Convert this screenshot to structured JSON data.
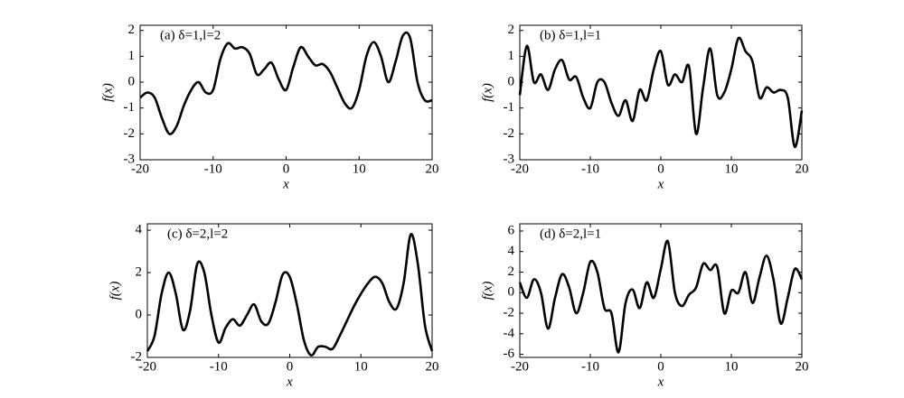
{
  "chart_data": [
    {
      "type": "line",
      "annotation": "(a) δ=1,l=2",
      "xlabel": "x",
      "ylabel": "f(x)",
      "color": "#000000",
      "x": [
        -20,
        -19,
        -18,
        -17,
        -16,
        -15,
        -14,
        -13,
        -12,
        -11,
        -10,
        -9,
        -8,
        -7,
        -6,
        -5,
        -4,
        -3,
        -2,
        -1,
        0,
        1,
        2,
        3,
        4,
        5,
        6,
        7,
        8,
        9,
        10,
        11,
        12,
        13,
        14,
        15,
        16,
        17,
        18,
        19,
        20
      ],
      "values": [
        -0.6,
        -0.4,
        -0.6,
        -1.4,
        -2.0,
        -1.7,
        -0.9,
        -0.3,
        0.0,
        -0.4,
        -0.3,
        0.9,
        1.5,
        1.3,
        1.35,
        1.1,
        0.3,
        0.5,
        0.75,
        0.1,
        -0.3,
        0.6,
        1.35,
        1.0,
        0.65,
        0.7,
        0.4,
        -0.2,
        -0.8,
        -1.0,
        -0.3,
        1.0,
        1.55,
        1.0,
        0.0,
        0.8,
        1.8,
        1.7,
        0.0,
        -0.7,
        -0.7
      ],
      "xlim": [
        -20,
        20
      ],
      "xticks": [
        -20,
        -10,
        0,
        10,
        20
      ],
      "ylim": [
        -3,
        2.2
      ],
      "yticks": [
        -3,
        -2,
        -1,
        0,
        1,
        2
      ]
    },
    {
      "type": "line",
      "annotation": "(b) δ=1,l=1",
      "xlabel": "x",
      "ylabel": "f(x)",
      "color": "#000000",
      "x": [
        -20,
        -19,
        -18,
        -17,
        -16,
        -15,
        -14,
        -13,
        -12,
        -11,
        -10,
        -9,
        -8,
        -7,
        -6,
        -5,
        -4,
        -3,
        -2,
        -1,
        0,
        1,
        2,
        3,
        4,
        5,
        6,
        7,
        8,
        9,
        10,
        11,
        12,
        13,
        14,
        15,
        16,
        17,
        18,
        19,
        20
      ],
      "values": [
        -0.5,
        1.4,
        0.0,
        0.3,
        -0.3,
        0.5,
        0.85,
        0.1,
        0.2,
        -0.6,
        -1.0,
        0.0,
        0.0,
        -0.8,
        -1.3,
        -0.7,
        -1.5,
        -0.3,
        -0.7,
        0.5,
        1.2,
        -0.1,
        0.3,
        0.0,
        0.6,
        -2.0,
        -0.2,
        1.3,
        -0.5,
        -0.4,
        0.5,
        1.7,
        1.2,
        0.8,
        -0.6,
        -0.2,
        -0.4,
        -0.3,
        -0.6,
        -2.5,
        -1.1
      ],
      "xlim": [
        -20,
        20
      ],
      "xticks": [
        -20,
        -10,
        0,
        10,
        20
      ],
      "ylim": [
        -3,
        2.2
      ],
      "yticks": [
        -3,
        -2,
        -1,
        0,
        1,
        2
      ]
    },
    {
      "type": "line",
      "annotation": "(c) δ=2,l=2",
      "xlabel": "x",
      "ylabel": "f(x)",
      "color": "#000000",
      "x": [
        -20,
        -19,
        -18,
        -17,
        -16,
        -15,
        -14,
        -13,
        -12,
        -11,
        -10,
        -9,
        -8,
        -7,
        -6,
        -5,
        -4,
        -3,
        -2,
        -1,
        0,
        1,
        2,
        3,
        4,
        5,
        6,
        7,
        8,
        9,
        10,
        11,
        12,
        13,
        14,
        15,
        16,
        17,
        18,
        19,
        20
      ],
      "values": [
        -1.7,
        -1.0,
        1.0,
        2.0,
        1.0,
        -0.7,
        0.2,
        2.4,
        2.0,
        0.0,
        -1.3,
        -0.6,
        -0.2,
        -0.5,
        0.0,
        0.5,
        -0.3,
        -0.4,
        0.6,
        1.9,
        1.8,
        0.5,
        -1.2,
        -1.9,
        -1.5,
        -1.5,
        -1.6,
        -1.0,
        -0.3,
        0.4,
        1.0,
        1.5,
        1.8,
        1.5,
        0.6,
        0.3,
        1.5,
        3.8,
        2.4,
        -0.5,
        -1.7
      ],
      "xlim": [
        -20,
        20
      ],
      "xticks": [
        -20,
        -10,
        0,
        10,
        20
      ],
      "ylim": [
        -2,
        4.3
      ],
      "yticks": [
        -2,
        0,
        2,
        4
      ]
    },
    {
      "type": "line",
      "annotation": "(d) δ=2,l=1",
      "xlabel": "x",
      "ylabel": "f(x)",
      "color": "#000000",
      "x": [
        -20,
        -19,
        -18,
        -17,
        -16,
        -15,
        -14,
        -13,
        -12,
        -11,
        -10,
        -9,
        -8,
        -7,
        -6,
        -5,
        -4,
        -3,
        -2,
        -1,
        0,
        1,
        2,
        3,
        4,
        5,
        6,
        7,
        8,
        9,
        10,
        11,
        12,
        13,
        14,
        15,
        16,
        17,
        18,
        19,
        20
      ],
      "values": [
        1.0,
        -0.5,
        1.3,
        0.0,
        -3.5,
        -0.5,
        1.8,
        0.5,
        -2.0,
        0.0,
        3.0,
        2.0,
        -1.5,
        -2.0,
        -5.8,
        -1.0,
        0.3,
        -1.5,
        1.0,
        -0.5,
        2.3,
        5.0,
        0.0,
        -1.3,
        -0.2,
        0.5,
        2.8,
        2.2,
        2.5,
        -2.0,
        0.2,
        0.0,
        2.0,
        -1.0,
        1.5,
        3.6,
        1.2,
        -3.0,
        -0.5,
        2.3,
        1.3
      ],
      "xlim": [
        -20,
        20
      ],
      "xticks": [
        -20,
        -10,
        0,
        10,
        20
      ],
      "ylim": [
        -6.3,
        6.7
      ],
      "yticks": [
        -6,
        -4,
        -2,
        0,
        2,
        4,
        6
      ]
    }
  ]
}
